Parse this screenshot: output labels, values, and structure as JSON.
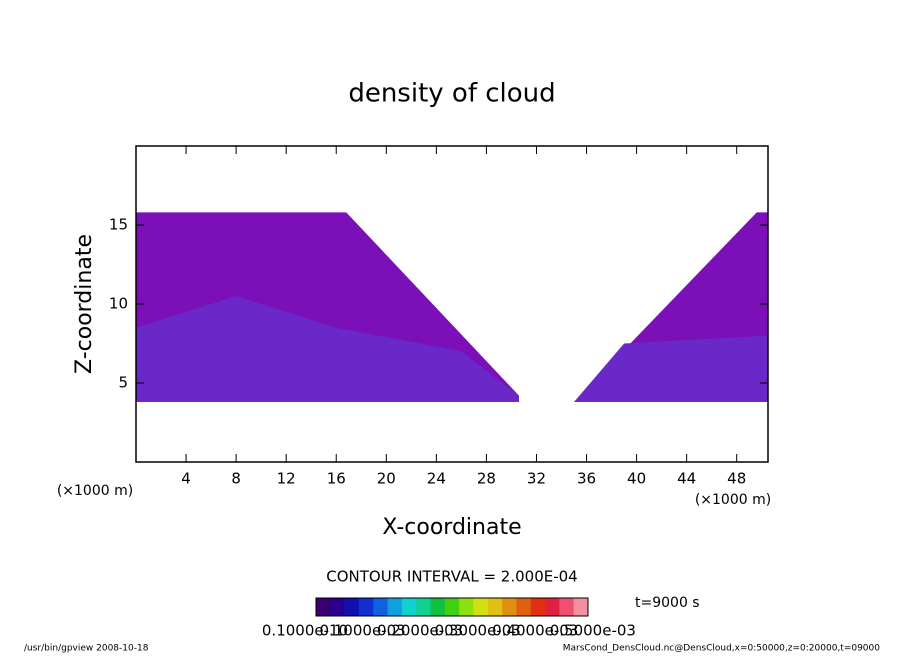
{
  "chart_data": {
    "type": "contour",
    "title": "density of cloud",
    "x_label": "X-coordinate",
    "y_label": "Z-coordinate",
    "x_unit": "(×1000 m)",
    "y_unit": "(×1000 m)",
    "xlim": [
      0,
      50.5
    ],
    "ylim": [
      0,
      20
    ],
    "xticks": [
      4,
      8,
      12,
      16,
      20,
      24,
      28,
      32,
      36,
      40,
      44,
      48
    ],
    "yticks": [
      5,
      10,
      15
    ],
    "regions": [
      {
        "color": "#7b10b8",
        "x": [
          0,
          16.8,
          30.6,
          30.6,
          0
        ],
        "y": [
          15.8,
          15.8,
          4.2,
          3.8,
          3.8
        ]
      },
      {
        "color": "#7b10b8",
        "x": [
          35,
          49.6,
          50.5,
          50.5,
          35
        ],
        "y": [
          3.8,
          15.8,
          15.8,
          3.8,
          3.8
        ]
      },
      {
        "color": "#6a28c8",
        "x": [
          0,
          8,
          16,
          26,
          30.6,
          30.6,
          0
        ],
        "y": [
          8.5,
          10.5,
          8.5,
          7,
          4.2,
          3.8,
          3.8
        ]
      },
      {
        "color": "#6a28c8",
        "x": [
          35,
          39,
          50.5,
          50.5,
          35
        ],
        "y": [
          3.8,
          7.5,
          8,
          3.8,
          3.8
        ]
      }
    ],
    "contour_interval": "CONTOUR INTERVAL = 2.000E-04",
    "time_label": "t=9000 s",
    "colorbar": {
      "colors": [
        "#3a0070",
        "#2a0090",
        "#1010b0",
        "#1030d0",
        "#1060e0",
        "#10a0e0",
        "#10d0d0",
        "#10d090",
        "#10c040",
        "#40d010",
        "#90e010",
        "#d0e010",
        "#e0c010",
        "#e09010",
        "#e06010",
        "#e03010",
        "#e02040",
        "#f05070",
        "#f090a0"
      ],
      "labels": [
        "0.1000e-10",
        "0.1000e-03",
        "0.2000e-03",
        "0.3000e-03",
        "0.4000e-03",
        "0.5000e-03"
      ]
    },
    "footer_left": "/usr/bin/gpview   2008-10-18",
    "footer_right": "MarsCond_DensCloud.nc@DensCloud,x=0:50000,z=0:20000,t=09000"
  }
}
